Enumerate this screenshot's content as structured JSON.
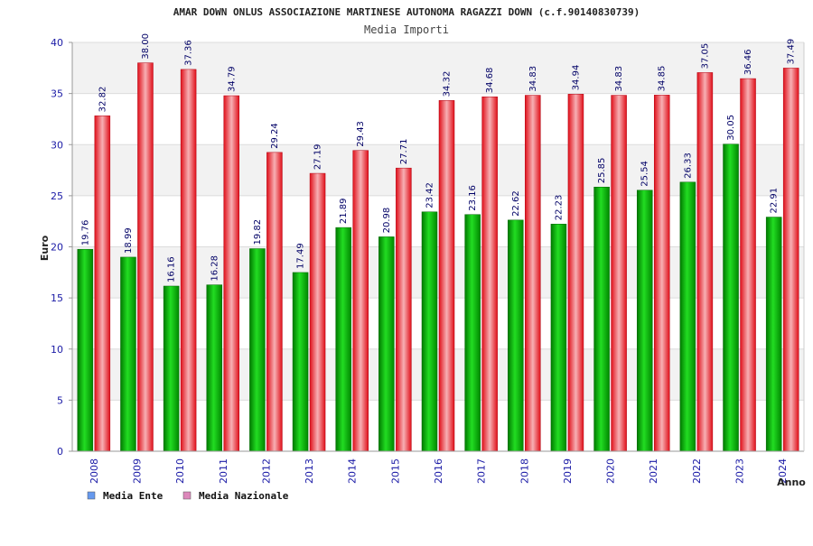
{
  "chart_data": {
    "type": "bar",
    "title": "AMAR DOWN ONLUS ASSOCIAZIONE MARTINESE AUTONOMA RAGAZZI DOWN (c.f.90140830739)",
    "subtitle": "Media Importi",
    "xlabel": "Anno",
    "ylabel": "Euro",
    "ylim": [
      0,
      40
    ],
    "yticks": [
      0,
      5,
      10,
      15,
      20,
      25,
      30,
      35,
      40
    ],
    "grid": true,
    "categories": [
      "2008",
      "2009",
      "2010",
      "2011",
      "2012",
      "2013",
      "2014",
      "2015",
      "2016",
      "2017",
      "2018",
      "2019",
      "2020",
      "2021",
      "2022",
      "2023",
      "2024"
    ],
    "series": [
      {
        "name": "Media Ente",
        "color": "#00aa00",
        "legend_color": "#6699ee",
        "values": [
          19.76,
          18.99,
          16.16,
          16.28,
          19.82,
          17.49,
          21.89,
          20.98,
          23.42,
          23.16,
          22.62,
          22.23,
          25.85,
          25.54,
          26.33,
          30.05,
          22.91
        ],
        "labels": [
          "19.76",
          "18.99",
          "16.16",
          "16.28",
          "19.82",
          "17.49",
          "21.89",
          "20.98",
          "23.42",
          "23.16",
          "22.62",
          "22.23",
          "25.85",
          "25.54",
          "26.33",
          "30.05",
          "22.91"
        ]
      },
      {
        "name": "Media Nazionale",
        "color": "#e8202a",
        "legend_color": "#dd88bb",
        "values": [
          32.82,
          38.0,
          37.36,
          34.79,
          29.24,
          27.19,
          29.43,
          27.71,
          34.32,
          34.68,
          34.83,
          34.94,
          34.83,
          34.85,
          37.05,
          36.46,
          37.49
        ],
        "labels": [
          "32.82",
          "38.00",
          "37.36",
          "34.79",
          "29.24",
          "27.19",
          "29.43",
          "27.71",
          "34.32",
          "34.68",
          "34.83",
          "34.94",
          "34.83",
          "34.85",
          "37.05",
          "36.46",
          "37.49"
        ]
      }
    ],
    "legend_position": "bottom-left"
  }
}
